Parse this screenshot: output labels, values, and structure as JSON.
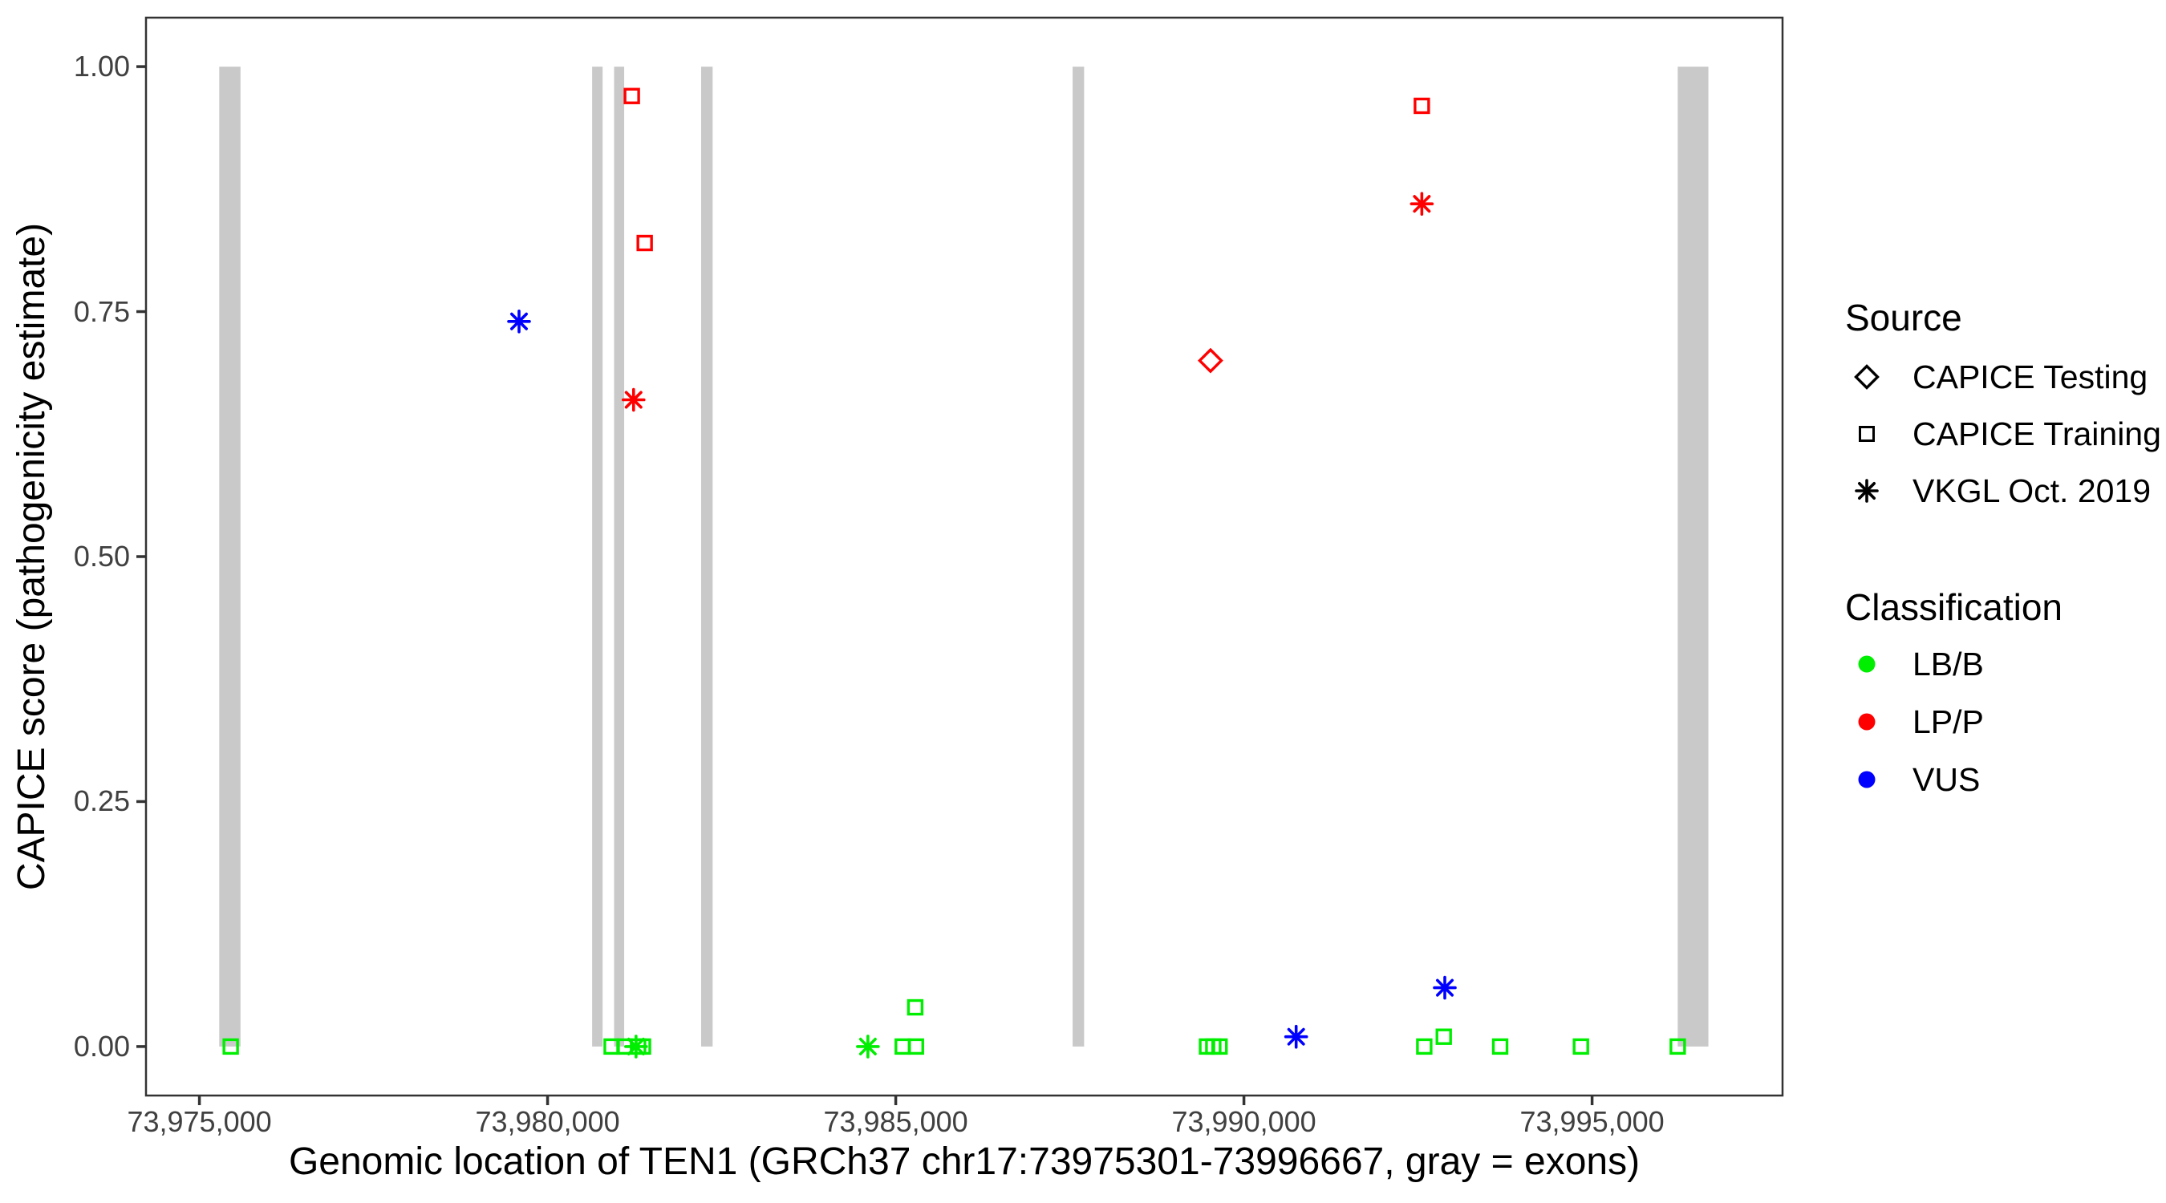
{
  "colors": {
    "lbb": "#00EE00",
    "lpp": "#FF0000",
    "vus": "#0000FF",
    "exon": "#C9C9C9",
    "axis_text": "#404040",
    "axis_title": "#000000",
    "panel_border": "#333333"
  },
  "y_axis": {
    "title": "CAPICE score (pathogenicity estimate)",
    "ticks": [
      {
        "label": "0.00",
        "value": 0.0
      },
      {
        "label": "0.25",
        "value": 0.25
      },
      {
        "label": "0.50",
        "value": 0.5
      },
      {
        "label": "0.75",
        "value": 0.75
      },
      {
        "label": "1.00",
        "value": 1.0
      }
    ]
  },
  "x_axis": {
    "title": "Genomic location of TEN1 (GRCh37 chr17:73975301-73996667, gray = exons)",
    "ticks": [
      {
        "label": "73,975,000",
        "value": 73975000
      },
      {
        "label": "73,980,000",
        "value": 73980000
      },
      {
        "label": "73,985,000",
        "value": 73985000
      },
      {
        "label": "73,990,000",
        "value": 73990000
      },
      {
        "label": "73,995,000",
        "value": 73995000
      }
    ]
  },
  "legend": {
    "source": {
      "title": "Source",
      "items": [
        {
          "label": "CAPICE Testing",
          "marker": "diamond"
        },
        {
          "label": "CAPICE Training",
          "marker": "square"
        },
        {
          "label": "VKGL Oct. 2019",
          "marker": "asterisk"
        }
      ]
    },
    "classification": {
      "title": "Classification",
      "items": [
        {
          "label": "LB/B",
          "color_key": "lbb"
        },
        {
          "label": "LP/P",
          "color_key": "lpp"
        },
        {
          "label": "VUS",
          "color_key": "vus"
        }
      ]
    }
  },
  "chart_data": {
    "type": "scatter",
    "title": "",
    "xlabel": "Genomic location of TEN1 (GRCh37 chr17:73975301-73996667, gray = exons)",
    "ylabel": "CAPICE score (pathogenicity estimate)",
    "gene_region": {
      "gene": "TEN1",
      "assembly": "GRCh37",
      "chrom": "chr17",
      "start": 73975301,
      "end": 73996667
    },
    "x_axis_range": [
      73974233,
      73997735
    ],
    "y_axis_range": [
      -0.05,
      1.05
    ],
    "grid": false,
    "legend_position": "right",
    "marker_shape_by_source": {
      "CAPICE Testing": "diamond",
      "CAPICE Training": "square",
      "VKGL Oct. 2019": "asterisk"
    },
    "color_by_classification": {
      "LB/B": "lbb",
      "LP/P": "lpp",
      "VUS": "vus"
    },
    "exons": [
      {
        "start": 73975285,
        "end": 73975590
      },
      {
        "start": 73980640,
        "end": 73980790
      },
      {
        "start": 73980955,
        "end": 73981100
      },
      {
        "start": 73982205,
        "end": 73982370
      },
      {
        "start": 73987540,
        "end": 73987705
      },
      {
        "start": 73996230,
        "end": 73996670
      }
    ],
    "points": [
      {
        "pos": 73981210,
        "score": 0.97,
        "source": "CAPICE Training",
        "classification": "LP/P"
      },
      {
        "pos": 73981395,
        "score": 0.82,
        "source": "CAPICE Training",
        "classification": "LP/P"
      },
      {
        "pos": 73981235,
        "score": 0.66,
        "source": "VKGL Oct. 2019",
        "classification": "LP/P"
      },
      {
        "pos": 73989520,
        "score": 0.7,
        "source": "CAPICE Testing",
        "classification": "LP/P"
      },
      {
        "pos": 73992555,
        "score": 0.96,
        "source": "CAPICE Training",
        "classification": "LP/P"
      },
      {
        "pos": 73992555,
        "score": 0.86,
        "source": "VKGL Oct. 2019",
        "classification": "LP/P"
      },
      {
        "pos": 73979590,
        "score": 0.74,
        "source": "VKGL Oct. 2019",
        "classification": "VUS"
      },
      {
        "pos": 73992885,
        "score": 0.06,
        "source": "VKGL Oct. 2019",
        "classification": "VUS"
      },
      {
        "pos": 73990750,
        "score": 0.01,
        "source": "VKGL Oct. 2019",
        "classification": "VUS"
      },
      {
        "pos": 73975450,
        "score": 0.0,
        "source": "CAPICE Training",
        "classification": "LB/B"
      },
      {
        "pos": 73980920,
        "score": 0.0,
        "source": "CAPICE Training",
        "classification": "LB/B"
      },
      {
        "pos": 73981105,
        "score": 0.0,
        "source": "CAPICE Training",
        "classification": "LB/B"
      },
      {
        "pos": 73981300,
        "score": 0.0,
        "source": "CAPICE Training",
        "classification": "LB/B"
      },
      {
        "pos": 73981370,
        "score": 0.0,
        "source": "CAPICE Training",
        "classification": "LB/B"
      },
      {
        "pos": 73981270,
        "score": 0.0,
        "source": "VKGL Oct. 2019",
        "classification": "LB/B"
      },
      {
        "pos": 73984600,
        "score": 0.0,
        "source": "VKGL Oct. 2019",
        "classification": "LB/B"
      },
      {
        "pos": 73985100,
        "score": 0.0,
        "source": "CAPICE Training",
        "classification": "LB/B"
      },
      {
        "pos": 73985290,
        "score": 0.0,
        "source": "CAPICE Training",
        "classification": "LB/B"
      },
      {
        "pos": 73985280,
        "score": 0.04,
        "source": "CAPICE Training",
        "classification": "LB/B"
      },
      {
        "pos": 73989470,
        "score": 0.0,
        "source": "CAPICE Training",
        "classification": "LB/B"
      },
      {
        "pos": 73989560,
        "score": 0.0,
        "source": "CAPICE Training",
        "classification": "LB/B"
      },
      {
        "pos": 73989650,
        "score": 0.0,
        "source": "CAPICE Training",
        "classification": "LB/B"
      },
      {
        "pos": 73992590,
        "score": 0.0,
        "source": "CAPICE Training",
        "classification": "LB/B"
      },
      {
        "pos": 73992870,
        "score": 0.01,
        "source": "CAPICE Training",
        "classification": "LB/B"
      },
      {
        "pos": 73993680,
        "score": 0.0,
        "source": "CAPICE Training",
        "classification": "LB/B"
      },
      {
        "pos": 73994840,
        "score": 0.0,
        "source": "CAPICE Training",
        "classification": "LB/B"
      },
      {
        "pos": 73996230,
        "score": 0.0,
        "source": "CAPICE Training",
        "classification": "LB/B"
      }
    ]
  }
}
